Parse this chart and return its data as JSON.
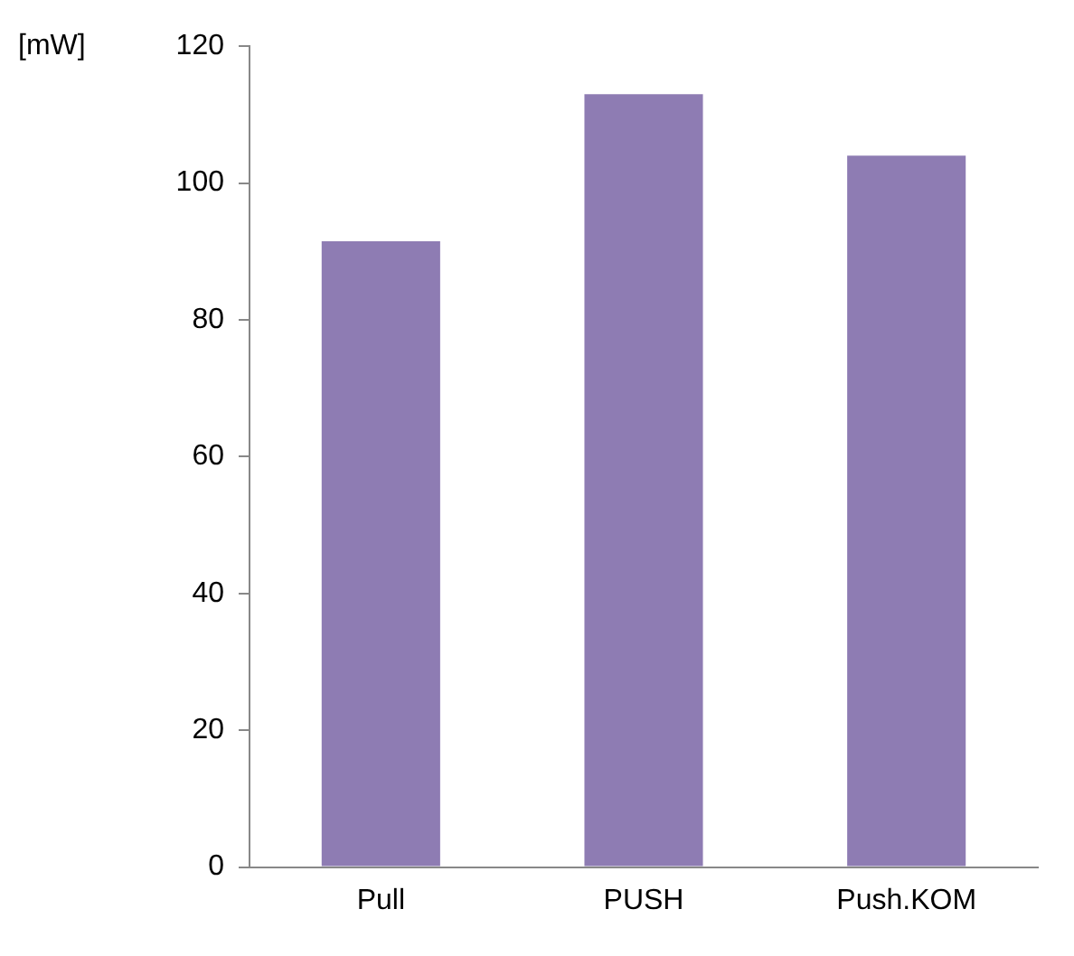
{
  "chart_data": {
    "type": "bar",
    "ylabel": "[mW]",
    "categories": [
      "Pull",
      "PUSH",
      "Push.KOM"
    ],
    "values": [
      91.5,
      113,
      104
    ],
    "color": "#8e7cb3",
    "ylim": [
      0,
      120
    ],
    "yticks": [
      0,
      20,
      40,
      60,
      80,
      100,
      120
    ],
    "grid": false,
    "legend": false
  }
}
